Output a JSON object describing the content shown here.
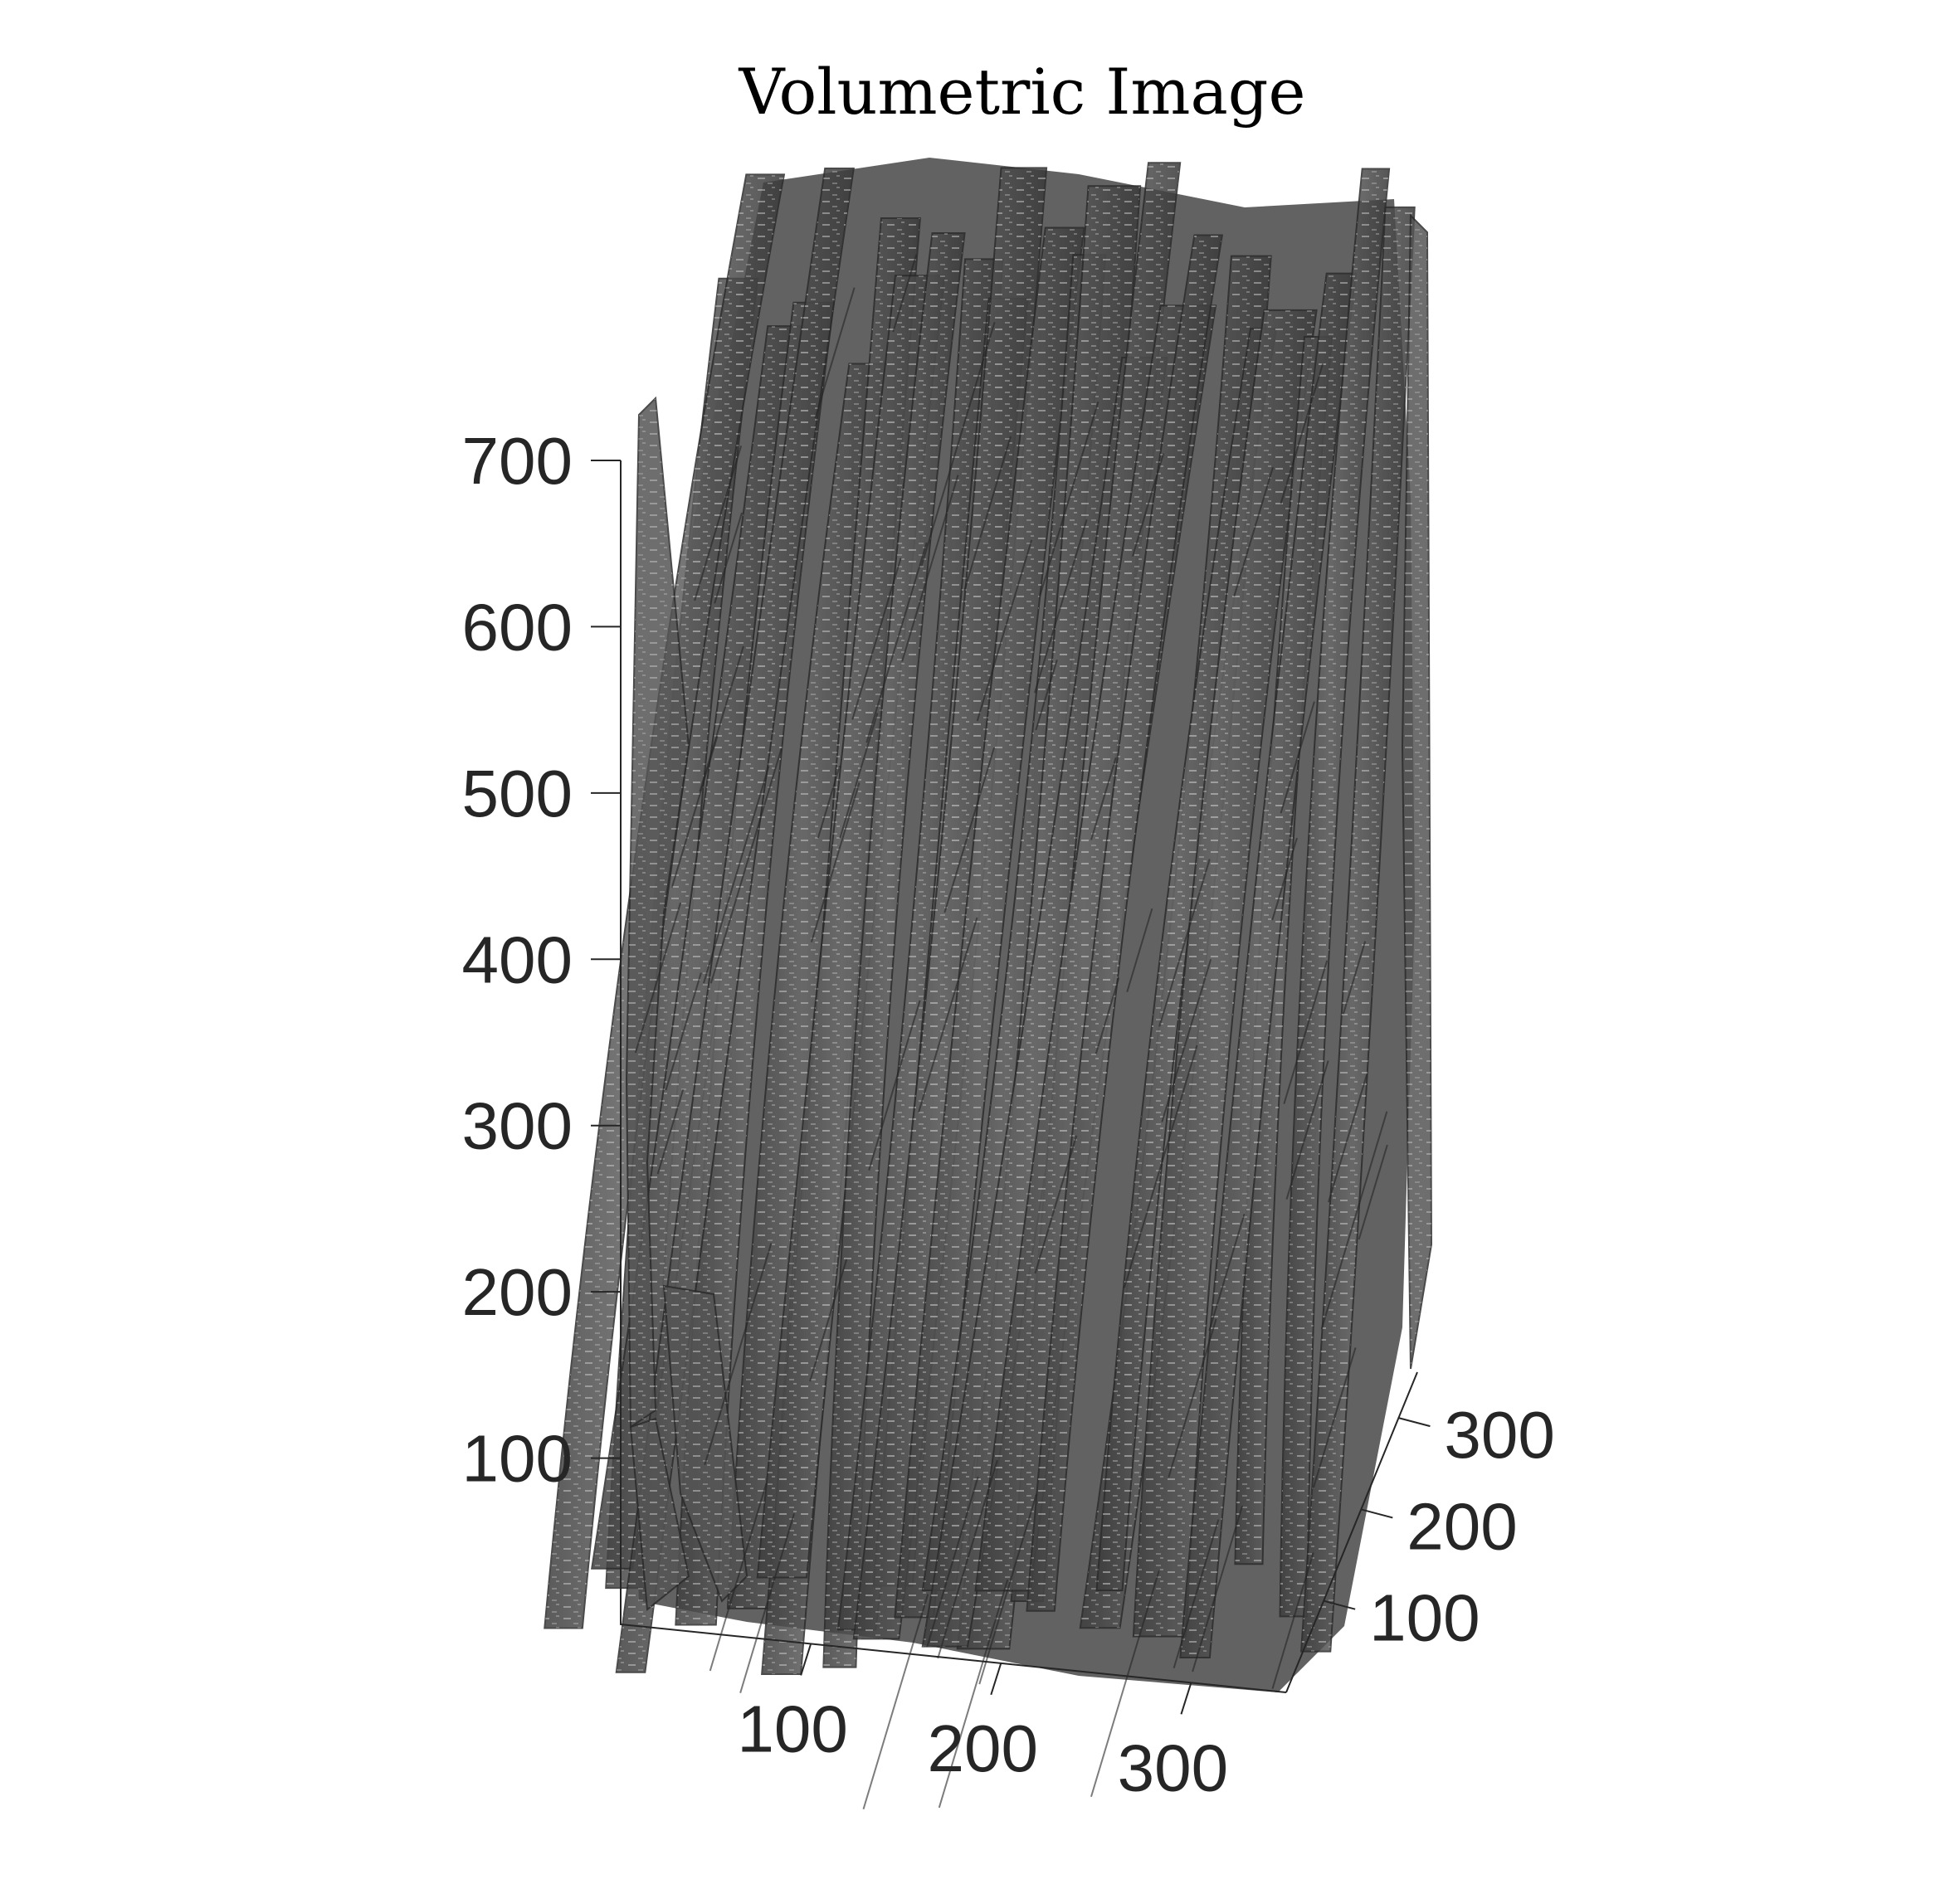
{
  "chart_data": {
    "type": "volumetric-isosurface",
    "title": "Volumetric Image",
    "xlabel": "",
    "ylabel": "",
    "zlabel": "",
    "x_axis": {
      "ticks": [
        100,
        200,
        300
      ],
      "range": [
        0,
        350
      ]
    },
    "y_axis": {
      "ticks": [
        100,
        200,
        300
      ],
      "range": [
        0,
        350
      ]
    },
    "z_axis": {
      "ticks": [
        100,
        200,
        300,
        400,
        500,
        600,
        700
      ],
      "range": [
        0,
        700
      ]
    },
    "grid": false,
    "legend": "none",
    "surface_color": "#555555",
    "edge_color": "#2b2b2b",
    "highlight_color": "#c8c8c8"
  }
}
